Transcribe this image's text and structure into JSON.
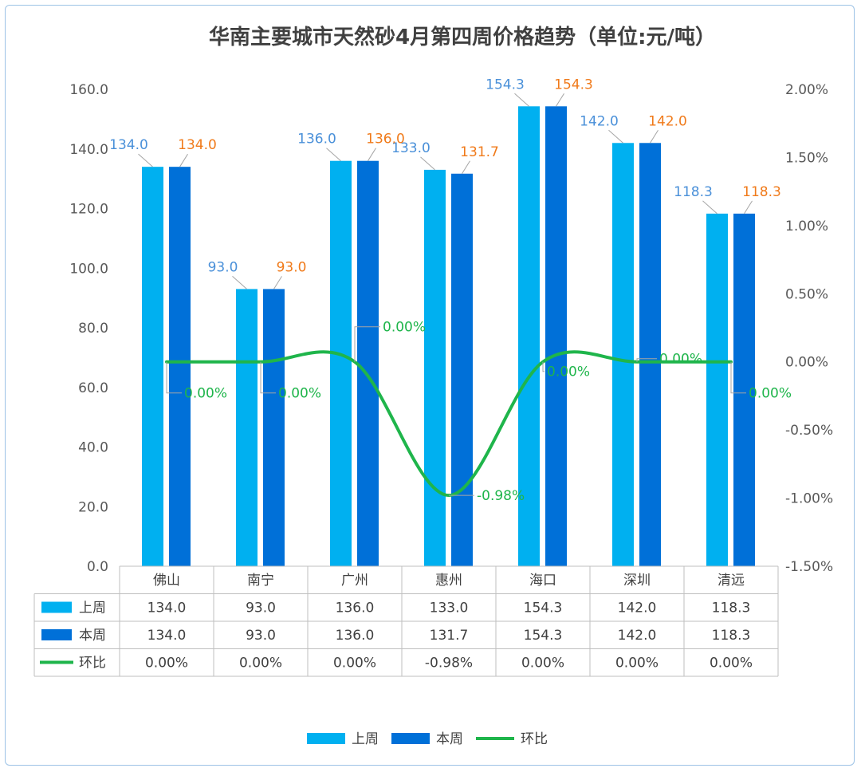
{
  "chart_data": {
    "type": "bar",
    "title": "华南主要城市天然砂4月第四周价格趋势（单位:元/吨）",
    "categories": [
      "佛山",
      "南宁",
      "广州",
      "惠州",
      "海口",
      "深圳",
      "清远"
    ],
    "series": [
      {
        "name": "上周",
        "type": "bar",
        "axis": "left",
        "color": "#00b0f0",
        "values": [
          134.0,
          93.0,
          136.0,
          133.0,
          154.3,
          142.0,
          118.3
        ],
        "labels": [
          "134.0",
          "93.0",
          "136.0",
          "133.0",
          "154.3",
          "142.0",
          "118.3"
        ]
      },
      {
        "name": "本周",
        "type": "bar",
        "axis": "left",
        "color": "#0070d8",
        "values": [
          134.0,
          93.0,
          136.0,
          131.7,
          154.3,
          142.0,
          118.3
        ],
        "labels": [
          "134.0",
          "93.0",
          "136.0",
          "131.7",
          "154.3",
          "142.0",
          "118.3"
        ]
      },
      {
        "name": "环比",
        "type": "line",
        "axis": "right",
        "color": "#1fb54b",
        "values": [
          0.0,
          0.0,
          0.0,
          -0.98,
          0.0,
          0.0,
          0.0
        ],
        "labels": [
          "0.00%",
          "0.00%",
          "0.00%",
          "-0.98%",
          "0.00%",
          "0.00%",
          "0.00%"
        ]
      }
    ],
    "y_left": {
      "lim": [
        0,
        160
      ],
      "ticks": [
        "0.0",
        "20.0",
        "40.0",
        "60.0",
        "80.0",
        "100.0",
        "120.0",
        "140.0",
        "160.0"
      ]
    },
    "y_right": {
      "lim": [
        -1.5,
        2.0
      ],
      "ticks": [
        "-1.50%",
        "-1.00%",
        "-0.50%",
        "0.00%",
        "0.50%",
        "1.00%",
        "1.50%",
        "2.00%"
      ]
    },
    "data_table": {
      "rows": [
        {
          "name": "上周",
          "cells": [
            "134.0",
            "93.0",
            "136.0",
            "133.0",
            "154.3",
            "142.0",
            "118.3"
          ]
        },
        {
          "name": "本周",
          "cells": [
            "134.0",
            "93.0",
            "136.0",
            "131.7",
            "154.3",
            "142.0",
            "118.3"
          ]
        },
        {
          "name": "环比",
          "cells": [
            "0.00%",
            "0.00%",
            "0.00%",
            "-0.98%",
            "0.00%",
            "0.00%",
            "0.00%"
          ]
        }
      ]
    },
    "legend": {
      "position": "bottom",
      "items": [
        "上周",
        "本周",
        "环比"
      ]
    },
    "grid": false
  }
}
